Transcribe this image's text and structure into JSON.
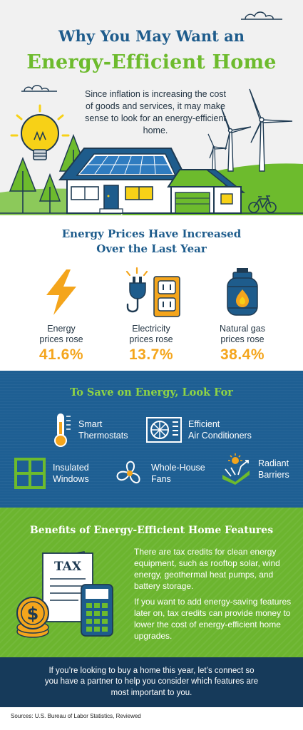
{
  "hero": {
    "title_line1": "Why You May Want an",
    "title_line2": "Energy-Efficient Home",
    "subtitle": "Since inflation is increasing the cost of goods and services, it may make sense to look for an energy-efficient home."
  },
  "prices": {
    "title_line1": "Energy Prices Have Increased",
    "title_line2": "Over the Last Year",
    "items": [
      {
        "label_line1": "Energy",
        "label_line2": "prices rose",
        "value": "41.6%",
        "icon": "lightning-bolt-icon"
      },
      {
        "label_line1": "Electricity",
        "label_line2": "prices rose",
        "value": "13.7%",
        "icon": "plug-outlet-icon"
      },
      {
        "label_line1": "Natural gas",
        "label_line2": "prices rose",
        "value": "38.4%",
        "icon": "gas-tank-icon"
      }
    ]
  },
  "save": {
    "title": "To Save on Energy, Look For",
    "items": [
      {
        "line1": "Smart",
        "line2": "Thermostats",
        "icon": "thermostat-icon"
      },
      {
        "line1": "Efficient",
        "line2": "Air Conditioners",
        "icon": "air-conditioner-icon"
      },
      {
        "line1": "Insulated",
        "line2": "Windows",
        "icon": "window-icon"
      },
      {
        "line1": "Whole-House",
        "line2": "Fans",
        "icon": "fan-icon"
      },
      {
        "line1": "Radiant",
        "line2": "Barriers",
        "icon": "radiant-barrier-icon"
      }
    ]
  },
  "benefits": {
    "title": "Benefits of Energy-Efficient Home Features",
    "tax_label": "TAX",
    "paragraph1": "There are tax credits for clean energy equipment, such as rooftop solar, wind energy, geothermal heat pumps, and battery storage.",
    "paragraph2": "If you want to add energy-saving features later on, tax credits can provide money to lower the cost of energy-efficient home upgrades."
  },
  "cta": {
    "text": "If you’re looking to buy a home this year, let’s connect so you have a partner to help you consider which features are most important to you."
  },
  "sources": "Sources: U.S. Bureau of Labor Statistics, Reviewed",
  "colors": {
    "title_blue": "#1e5c8c",
    "accent_green": "#6dbb2d",
    "value_orange": "#f4a51c",
    "section_blue": "#1e5f93",
    "section_green": "#6cb52f",
    "cta_navy": "#163a5a"
  }
}
